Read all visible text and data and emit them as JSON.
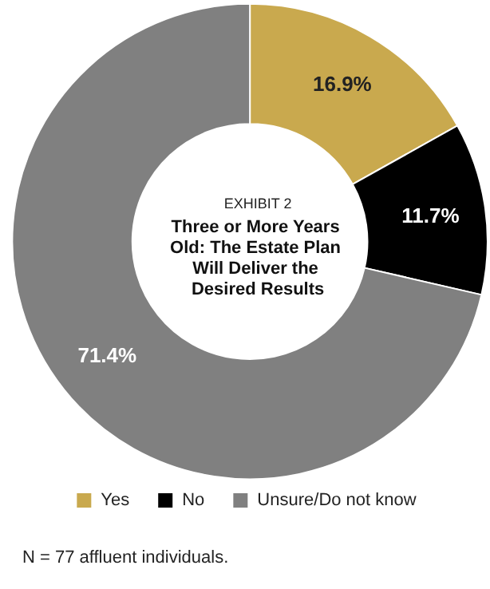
{
  "chart_data": {
    "type": "donut",
    "subtitle": "EXHIBIT 2",
    "title": "Three or More Years Old: The Estate Plan Will Deliver the Desired Results",
    "categories": [
      "Yes",
      "No",
      "Unsure/Do not know"
    ],
    "values": [
      16.9,
      11.7,
      71.4
    ],
    "colors": [
      "#c9a94e",
      "#000000",
      "#808080"
    ],
    "value_labels": [
      "16.9%",
      "11.7%",
      "71.4%"
    ],
    "legend": "bottom",
    "annotations": [
      "N = 77 affluent individuals."
    ]
  }
}
